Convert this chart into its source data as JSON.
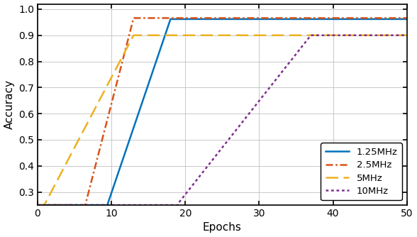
{
  "title": "",
  "xlabel": "Epochs",
  "ylabel": "Accuracy",
  "xlim": [
    0,
    50
  ],
  "ylim": [
    0.25,
    1.02
  ],
  "yticks": [
    0.3,
    0.4,
    0.5,
    0.6,
    0.7,
    0.8,
    0.9,
    1.0
  ],
  "xticks": [
    0,
    10,
    20,
    30,
    40,
    50
  ],
  "series": [
    {
      "label": "1.25MHz",
      "color": "#0072BD",
      "linestyle": "solid",
      "linewidth": 1.8,
      "x": [
        0,
        9.5,
        9.5,
        18.0,
        18.0,
        50
      ],
      "y": [
        0.25,
        0.25,
        0.255,
        0.962,
        0.962,
        0.962
      ]
    },
    {
      "label": "2.5MHz",
      "color": "#D95319",
      "linestyle": "dashdot",
      "linewidth": 1.8,
      "x": [
        0,
        6.5,
        6.5,
        13.0,
        13.0,
        50
      ],
      "y": [
        0.25,
        0.25,
        0.255,
        0.966,
        0.966,
        0.966
      ]
    },
    {
      "label": "5MHz",
      "color": "#EDB120",
      "linestyle": "dashed",
      "linewidth": 1.8,
      "x": [
        0,
        1.0,
        1.0,
        13.0,
        13.0,
        50
      ],
      "y": [
        0.25,
        0.25,
        0.255,
        0.9,
        0.9,
        0.9
      ]
    },
    {
      "label": "10MHz",
      "color": "#7E2F8E",
      "linestyle": "dotted",
      "linewidth": 1.8,
      "x": [
        0,
        19.0,
        19.0,
        37.0,
        37.0,
        50
      ],
      "y": [
        0.25,
        0.25,
        0.255,
        0.9,
        0.9,
        0.9
      ]
    }
  ],
  "legend_loc": "lower right",
  "grid": true,
  "background_color": "#ffffff",
  "border_linewidth": 1.2
}
